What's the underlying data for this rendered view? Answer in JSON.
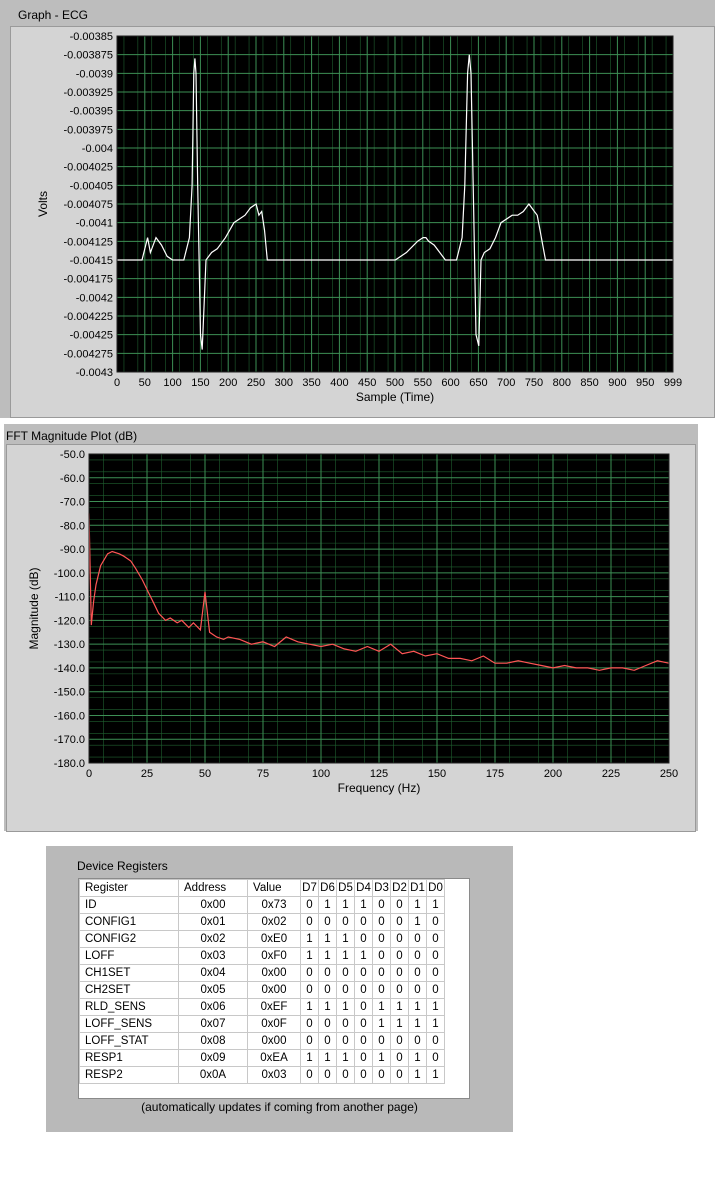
{
  "ecg": {
    "title": "Graph - ECG",
    "ylabel": "Volts",
    "xlabel": "Sample (Time)",
    "y_ticks": [
      "-0.00385",
      "-0.003875",
      "-0.0039",
      "-0.003925",
      "-0.00395",
      "-0.003975",
      "-0.004",
      "-0.004025",
      "-0.00405",
      "-0.004075",
      "-0.0041",
      "-0.004125",
      "-0.00415",
      "-0.004175",
      "-0.0042",
      "-0.004225",
      "-0.00425",
      "-0.004275",
      "-0.0043"
    ],
    "x_ticks": [
      "0",
      "50",
      "100",
      "150",
      "200",
      "250",
      "300",
      "350",
      "400",
      "450",
      "500",
      "550",
      "600",
      "650",
      "700",
      "750",
      "800",
      "850",
      "900",
      "950",
      "999"
    ]
  },
  "fft": {
    "title": "FFT Magnitude Plot (dB)",
    "ylabel": "Magnitude (dB)",
    "xlabel": "Frequency (Hz)",
    "y_ticks": [
      "-50.0",
      "-60.0",
      "-70.0",
      "-80.0",
      "-90.0",
      "-100.0",
      "-110.0",
      "-120.0",
      "-130.0",
      "-140.0",
      "-150.0",
      "-160.0",
      "-170.0",
      "-180.0"
    ],
    "x_ticks": [
      "0",
      "25",
      "50",
      "75",
      "100",
      "125",
      "150",
      "175",
      "200",
      "225",
      "250"
    ]
  },
  "chart_data": [
    {
      "type": "line",
      "title": "Graph - ECG",
      "xlabel": "Sample (Time)",
      "ylabel": "Volts",
      "xlim": [
        0,
        999
      ],
      "ylim": [
        -0.0043,
        -0.00385
      ],
      "grid": true,
      "series": [
        {
          "color": "#ffffff",
          "x": [
            0,
            30,
            45,
            50,
            55,
            60,
            65,
            70,
            80,
            90,
            100,
            120,
            130,
            135,
            138,
            140,
            142,
            145,
            150,
            153,
            160,
            170,
            180,
            195,
            210,
            230,
            240,
            250,
            255,
            260,
            265,
            270,
            280,
            300,
            350,
            400,
            450,
            480,
            490,
            500,
            520,
            540,
            550,
            555,
            560,
            570,
            590,
            610,
            620,
            625,
            630,
            633,
            636,
            640,
            645,
            650,
            654,
            660,
            670,
            680,
            690,
            710,
            720,
            730,
            740,
            750,
            755,
            760,
            770,
            775,
            790,
            800,
            850,
            900,
            950,
            999
          ],
          "y": [
            -0.00415,
            -0.00415,
            -0.00415,
            -0.004135,
            -0.00412,
            -0.00414,
            -0.00413,
            -0.00412,
            -0.00413,
            -0.004145,
            -0.00415,
            -0.00415,
            -0.00412,
            -0.00405,
            -0.0039,
            -0.00388,
            -0.0039,
            -0.00405,
            -0.00425,
            -0.00427,
            -0.00415,
            -0.00414,
            -0.004135,
            -0.00412,
            -0.0041,
            -0.00409,
            -0.00408,
            -0.004075,
            -0.00409,
            -0.004085,
            -0.00411,
            -0.00415,
            -0.00415,
            -0.00415,
            -0.00415,
            -0.00415,
            -0.00415,
            -0.00415,
            -0.00415,
            -0.00415,
            -0.00414,
            -0.004125,
            -0.00412,
            -0.00412,
            -0.004125,
            -0.00413,
            -0.00415,
            -0.00415,
            -0.00412,
            -0.00405,
            -0.0039,
            -0.003875,
            -0.0039,
            -0.00405,
            -0.00425,
            -0.004265,
            -0.00415,
            -0.00414,
            -0.004135,
            -0.00412,
            -0.0041,
            -0.00409,
            -0.00409,
            -0.004085,
            -0.004075,
            -0.004085,
            -0.00409,
            -0.00411,
            -0.00415,
            -0.00415,
            -0.00415,
            -0.00415,
            -0.00415,
            -0.00415,
            -0.00415,
            -0.00415
          ]
        }
      ]
    },
    {
      "type": "line",
      "title": "FFT Magnitude Plot (dB)",
      "xlabel": "Frequency (Hz)",
      "ylabel": "Magnitude (dB)",
      "xlim": [
        0,
        250
      ],
      "ylim": [
        -180,
        -50
      ],
      "grid": true,
      "series": [
        {
          "color": "#ff5555",
          "x": [
            0,
            1,
            2,
            3,
            5,
            8,
            10,
            13,
            15,
            18,
            20,
            23,
            25,
            28,
            30,
            33,
            35,
            38,
            40,
            43,
            45,
            48,
            50,
            52,
            55,
            58,
            60,
            65,
            70,
            75,
            80,
            85,
            90,
            95,
            100,
            105,
            110,
            115,
            120,
            125,
            130,
            135,
            140,
            145,
            150,
            155,
            160,
            165,
            170,
            175,
            180,
            185,
            190,
            195,
            200,
            205,
            210,
            215,
            220,
            225,
            230,
            235,
            240,
            245,
            250
          ],
          "y": [
            -75,
            -122,
            -112,
            -105,
            -97,
            -92,
            -91,
            -92,
            -93,
            -95,
            -98,
            -103,
            -107,
            -113,
            -117,
            -120,
            -119,
            -121,
            -120,
            -123,
            -121,
            -124,
            -108,
            -125,
            -127,
            -128,
            -127,
            -128,
            -130,
            -129,
            -131,
            -127,
            -129,
            -130,
            -131,
            -130,
            -132,
            -133,
            -131,
            -133,
            -130,
            -134,
            -133,
            -135,
            -134,
            -136,
            -136,
            -137,
            -135,
            -138,
            -138,
            -137,
            -138,
            -139,
            -140,
            -139,
            -140,
            -140,
            -141,
            -140,
            -140,
            -141,
            -139,
            -137,
            -138
          ]
        }
      ]
    }
  ],
  "registers": {
    "title": "Device Registers",
    "headers": [
      "Register",
      "Address",
      "Value",
      "D7",
      "D6",
      "D5",
      "D4",
      "D3",
      "D2",
      "D1",
      "D0"
    ],
    "rows": [
      [
        "ID",
        "0x00",
        "0x73",
        "0",
        "1",
        "1",
        "1",
        "0",
        "0",
        "1",
        "1"
      ],
      [
        "CONFIG1",
        "0x01",
        "0x02",
        "0",
        "0",
        "0",
        "0",
        "0",
        "0",
        "1",
        "0"
      ],
      [
        "CONFIG2",
        "0x02",
        "0xE0",
        "1",
        "1",
        "1",
        "0",
        "0",
        "0",
        "0",
        "0"
      ],
      [
        "LOFF",
        "0x03",
        "0xF0",
        "1",
        "1",
        "1",
        "1",
        "0",
        "0",
        "0",
        "0"
      ],
      [
        "CH1SET",
        "0x04",
        "0x00",
        "0",
        "0",
        "0",
        "0",
        "0",
        "0",
        "0",
        "0"
      ],
      [
        "CH2SET",
        "0x05",
        "0x00",
        "0",
        "0",
        "0",
        "0",
        "0",
        "0",
        "0",
        "0"
      ],
      [
        "RLD_SENS",
        "0x06",
        "0xEF",
        "1",
        "1",
        "1",
        "0",
        "1",
        "1",
        "1",
        "1"
      ],
      [
        "LOFF_SENS",
        "0x07",
        "0x0F",
        "0",
        "0",
        "0",
        "0",
        "1",
        "1",
        "1",
        "1"
      ],
      [
        "LOFF_STAT",
        "0x08",
        "0x00",
        "0",
        "0",
        "0",
        "0",
        "0",
        "0",
        "0",
        "0"
      ],
      [
        "RESP1",
        "0x09",
        "0xEA",
        "1",
        "1",
        "1",
        "0",
        "1",
        "0",
        "1",
        "0"
      ],
      [
        "RESP2",
        "0x0A",
        "0x03",
        "0",
        "0",
        "0",
        "0",
        "0",
        "0",
        "1",
        "1"
      ]
    ],
    "note": "(automatically updates if coming from another page)"
  }
}
